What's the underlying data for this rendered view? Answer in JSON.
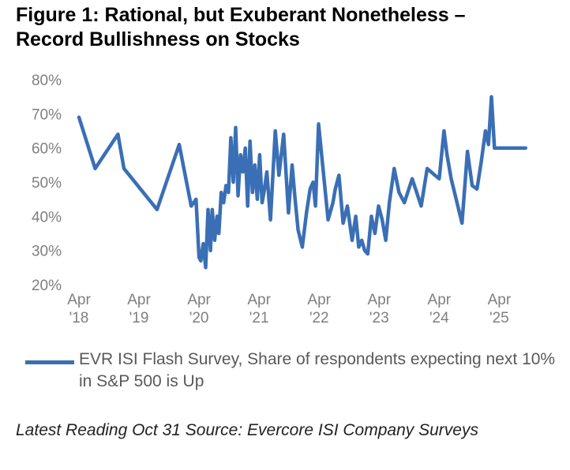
{
  "title": {
    "line1": "Figure 1:  Rational, but Exuberant Nonetheless –",
    "line2": "Record Bullishness on Stocks"
  },
  "chart_data": {
    "type": "line",
    "title": "Figure 1: Rational, but Exuberant Nonetheless – Record Bullishness on Stocks",
    "xlabel": "",
    "ylabel": "",
    "ylim": [
      20,
      80
    ],
    "xlim": [
      2018.25,
      2025.85
    ],
    "grid": false,
    "legend_position": "bottom",
    "color": "#3a6fb5",
    "y_ticks": [
      "20%",
      "30%",
      "40%",
      "50%",
      "60%",
      "70%",
      "80%"
    ],
    "x_ticks": [
      {
        "month": "Apr",
        "year": "'18",
        "value": 2018.25
      },
      {
        "month": "Apr",
        "year": "'19",
        "value": 2019.25
      },
      {
        "month": "Apr",
        "year": "'20",
        "value": 2020.25
      },
      {
        "month": "Apr",
        "year": "'21",
        "value": 2021.25
      },
      {
        "month": "Apr",
        "year": "'22",
        "value": 2022.25
      },
      {
        "month": "Apr",
        "year": "'23",
        "value": 2023.25
      },
      {
        "month": "Apr",
        "year": "'24",
        "value": 2024.25
      },
      {
        "month": "Apr",
        "year": "'25",
        "value": 2025.25
      }
    ],
    "series": [
      {
        "name": "EVR ISI Flash Survey, Share of respondents  expecting next 10% in S&P 500 is Up",
        "x": [
          2018.25,
          2018.52,
          2018.9,
          2019.0,
          2019.55,
          2019.92,
          2020.12,
          2020.2,
          2020.25,
          2020.28,
          2020.32,
          2020.36,
          2020.4,
          2020.44,
          2020.47,
          2020.51,
          2020.55,
          2020.58,
          2020.62,
          2020.66,
          2020.7,
          2020.74,
          2020.78,
          2020.82,
          2020.86,
          2020.9,
          2020.94,
          2020.98,
          2021.02,
          2021.06,
          2021.1,
          2021.14,
          2021.18,
          2021.22,
          2021.26,
          2021.3,
          2021.34,
          2021.38,
          2021.44,
          2021.52,
          2021.58,
          2021.66,
          2021.74,
          2021.8,
          2021.85,
          2021.9,
          2021.97,
          2022.04,
          2022.1,
          2022.15,
          2022.19,
          2022.24,
          2022.4,
          2022.48,
          2022.52,
          2022.58,
          2022.65,
          2022.72,
          2022.8,
          2022.86,
          2022.91,
          2022.96,
          2023.01,
          2023.06,
          2023.12,
          2023.18,
          2023.24,
          2023.3,
          2023.36,
          2023.42,
          2023.5,
          2023.58,
          2023.67,
          2023.8,
          2023.95,
          2024.05,
          2024.18,
          2024.25,
          2024.33,
          2024.38,
          2024.45,
          2024.63,
          2024.72,
          2024.8,
          2024.88,
          2024.95,
          2025.02,
          2025.07,
          2025.12,
          2025.17,
          2025.23,
          2025.29,
          2025.35,
          2025.4,
          2025.45,
          2025.5,
          2025.55,
          2025.6,
          2025.65,
          2025.69
        ],
        "values": [
          69,
          54,
          64,
          54,
          42,
          61,
          43,
          45,
          28,
          27,
          32,
          25,
          42,
          30,
          42,
          33,
          40,
          35,
          47,
          44,
          49,
          47,
          63,
          50,
          66,
          46,
          58,
          53,
          60,
          43,
          62,
          47,
          55,
          45,
          58,
          44,
          48,
          53,
          39,
          65,
          52,
          64,
          41,
          55,
          45,
          36,
          31,
          41,
          48,
          50,
          43,
          67,
          39,
          44,
          48,
          52,
          38,
          43,
          33,
          40,
          31,
          33,
          30,
          29,
          40,
          35,
          43,
          39,
          33,
          44,
          54,
          47,
          44,
          51,
          43,
          54,
          52,
          51,
          65,
          58,
          51,
          38,
          59,
          49,
          48,
          56,
          65,
          61,
          75,
          60,
          60,
          60,
          60,
          60,
          60,
          60,
          60,
          60,
          60,
          60
        ]
      }
    ]
  },
  "legend": {
    "label": "EVR ISI Flash Survey, Share of respondents  expecting next 10% in S&P 500 is Up"
  },
  "source": {
    "text": "Latest Reading Oct 31 Source: Evercore ISI Company Surveys"
  }
}
